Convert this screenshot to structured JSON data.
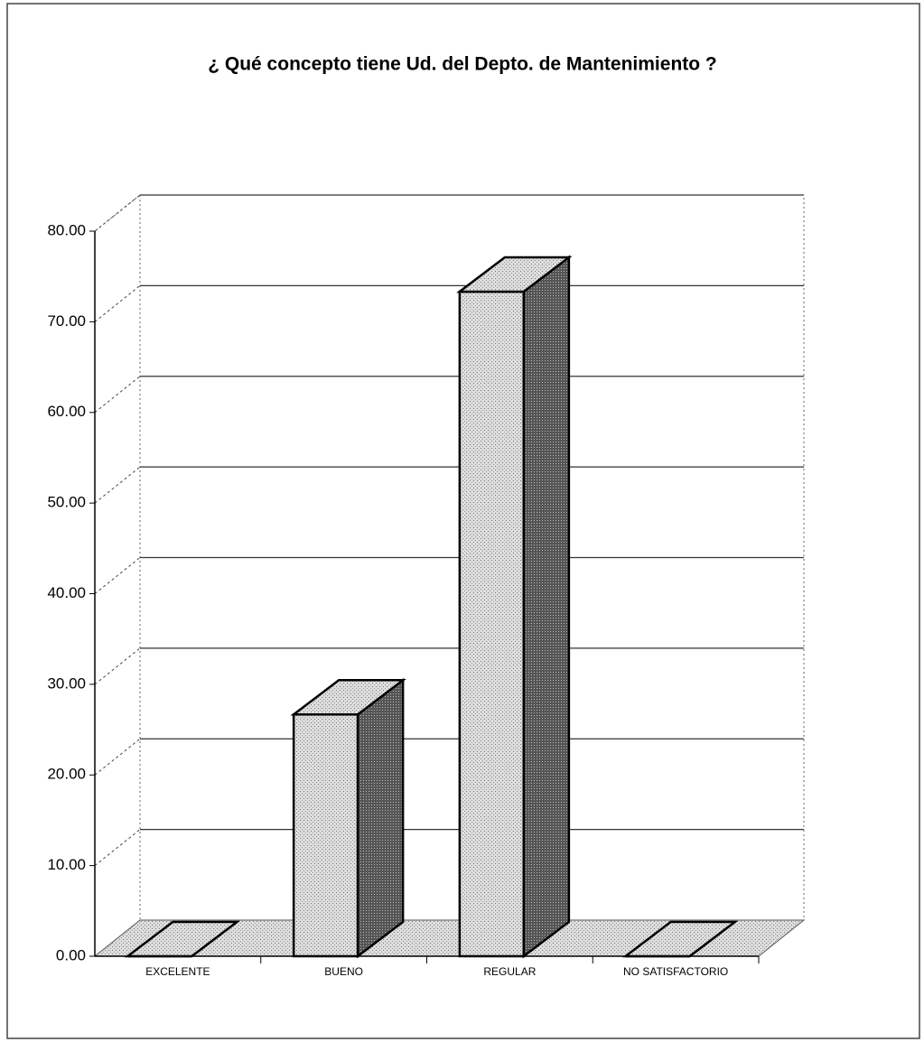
{
  "chart_data": {
    "type": "bar3d",
    "title": "¿ Qué concepto tiene Ud. del Depto. de Mantenimiento ?",
    "categories": [
      "EXCELENTE",
      "BUENO",
      "REGULAR",
      "NO SATISFACTORIO"
    ],
    "values": [
      0,
      26.67,
      73.33,
      0
    ],
    "ylim": [
      0,
      80
    ],
    "yticks": [
      {
        "value": 0,
        "label": "0.00"
      },
      {
        "value": 10,
        "label": "10.00"
      },
      {
        "value": 20,
        "label": "20.00"
      },
      {
        "value": 30,
        "label": "30.00"
      },
      {
        "value": 40,
        "label": "40.00"
      },
      {
        "value": 50,
        "label": "50.00"
      },
      {
        "value": 60,
        "label": "60.00"
      },
      {
        "value": 70,
        "label": "70.00"
      },
      {
        "value": 80,
        "label": "80.00"
      }
    ],
    "grid": true,
    "color": "#d0d0d0"
  }
}
